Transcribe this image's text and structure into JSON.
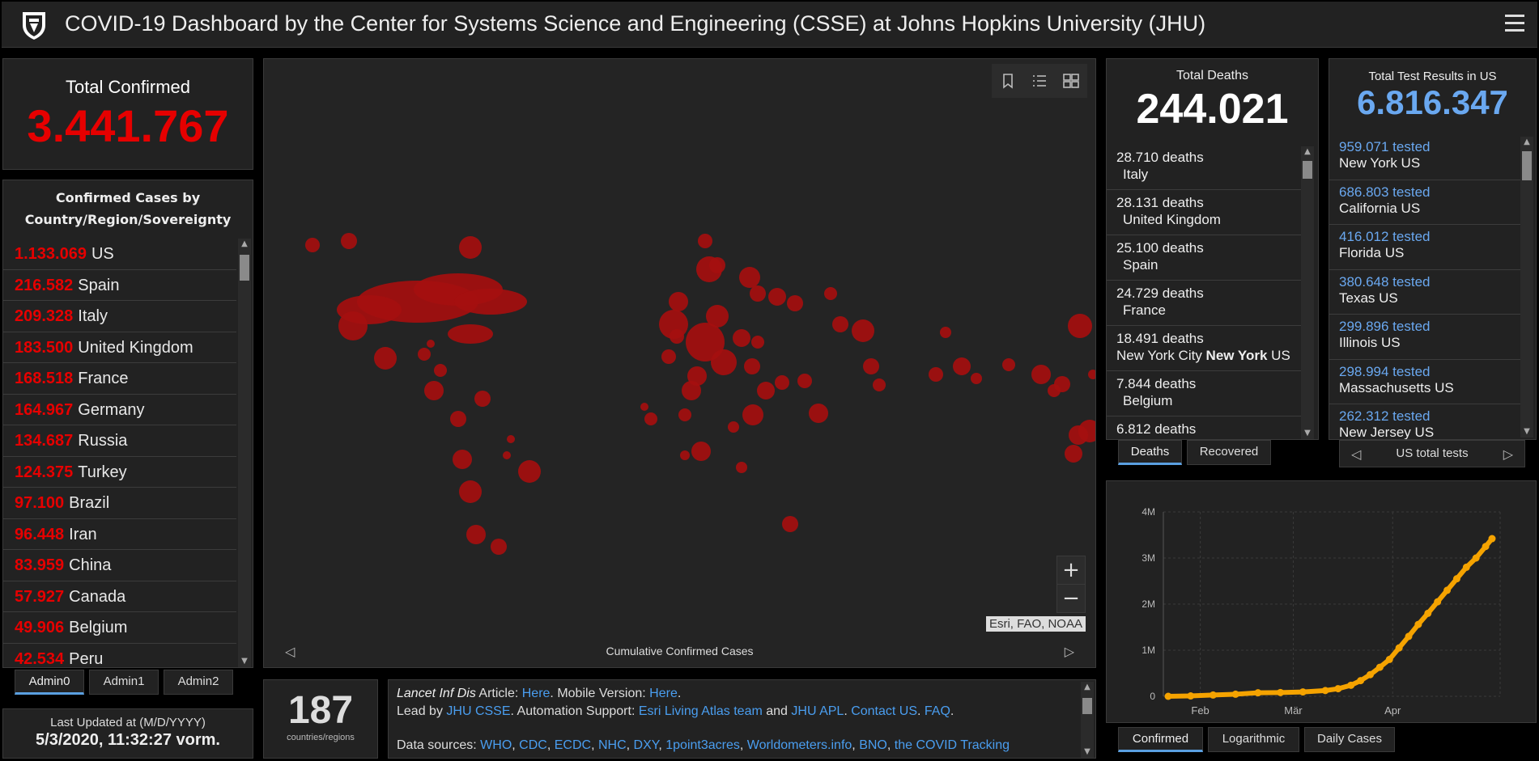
{
  "header": {
    "title": "COVID-19 Dashboard by the Center for Systems Science and Engineering (CSSE) at Johns Hopkins University (JHU)"
  },
  "total_confirmed": {
    "label": "Total Confirmed",
    "value": "3.441.767"
  },
  "country_list": {
    "title_line1": "Confirmed Cases by",
    "title_line2": "Country/Region/Sovereignty",
    "rows": [
      {
        "value": "1.133.069",
        "name": "US"
      },
      {
        "value": "216.582",
        "name": "Spain"
      },
      {
        "value": "209.328",
        "name": "Italy"
      },
      {
        "value": "183.500",
        "name": "United Kingdom"
      },
      {
        "value": "168.518",
        "name": "France"
      },
      {
        "value": "164.967",
        "name": "Germany"
      },
      {
        "value": "134.687",
        "name": "Russia"
      },
      {
        "value": "124.375",
        "name": "Turkey"
      },
      {
        "value": "97.100",
        "name": "Brazil"
      },
      {
        "value": "96.448",
        "name": "Iran"
      },
      {
        "value": "83.959",
        "name": "China"
      },
      {
        "value": "57.927",
        "name": "Canada"
      },
      {
        "value": "49.906",
        "name": "Belgium"
      },
      {
        "value": "42.534",
        "name": "Peru"
      }
    ]
  },
  "admin_tabs": [
    "Admin0",
    "Admin1",
    "Admin2"
  ],
  "last_updated": {
    "label": "Last Updated at (M/D/YYYY)",
    "value": "5/3/2020, 11:32:27 vorm."
  },
  "count": {
    "value": "187",
    "label": "countries/regions"
  },
  "map": {
    "attribution": "Esri, FAO, NOAA",
    "footer": "Cumulative Confirmed Cases",
    "zoom_in": "+",
    "zoom_out": "−",
    "accent": "#a50f0f"
  },
  "info": {
    "l1_italic": "Lancet Inf Dis",
    "l1_t1": " Article: ",
    "l1_link1": "Here",
    "l1_t2": ". Mobile Version: ",
    "l1_link2": "Here",
    "l1_t3": ".",
    "l2_t1": "Lead by ",
    "l2_link1": "JHU CSSE",
    "l2_t2": ". Automation Support: ",
    "l2_link2": "Esri Living Atlas team",
    "l2_t3": " and ",
    "l2_link3": "JHU APL",
    "l2_t4": ". ",
    "l2_link4": "Contact US",
    "l2_t5": ". ",
    "l2_link5": "FAQ",
    "l2_t6": ".",
    "l3_t1": "Data sources: ",
    "sources": [
      "WHO",
      "CDC",
      "ECDC",
      "NHC",
      "DXY",
      "1point3acres",
      "Worldometers.info",
      "BNO",
      "the COVID Tracking"
    ]
  },
  "deaths": {
    "label": "Total Deaths",
    "value": "244.021",
    "rows": [
      {
        "value": "28.710 deaths",
        "loc": "Italy",
        "bold": "",
        "suffix": ""
      },
      {
        "value": "28.131 deaths",
        "loc": "United Kingdom",
        "bold": "",
        "suffix": ""
      },
      {
        "value": "25.100 deaths",
        "loc": "Spain",
        "bold": "",
        "suffix": ""
      },
      {
        "value": "24.729 deaths",
        "loc": "France",
        "bold": "",
        "suffix": ""
      },
      {
        "value": "18.491 deaths",
        "loc": "New York City ",
        "bold": "New York",
        "suffix": " US"
      },
      {
        "value": "7.844 deaths",
        "loc": "Belgium",
        "bold": "",
        "suffix": ""
      },
      {
        "value": "6.812 deaths",
        "loc": "",
        "bold": "",
        "suffix": ""
      }
    ],
    "tabs": [
      "Deaths",
      "Recovered"
    ]
  },
  "tests": {
    "label": "Total Test Results in US",
    "value": "6.816.347",
    "rows": [
      {
        "value": "959.071 tested",
        "loc": "New York",
        "suffix": " US"
      },
      {
        "value": "686.803 tested",
        "loc": "California",
        "suffix": " US"
      },
      {
        "value": "416.012 tested",
        "loc": "Florida",
        "suffix": " US"
      },
      {
        "value": "380.648 tested",
        "loc": "Texas",
        "suffix": " US"
      },
      {
        "value": "299.896 tested",
        "loc": "Illinois",
        "suffix": " US"
      },
      {
        "value": "298.994 tested",
        "loc": "Massachusetts",
        "suffix": " US"
      },
      {
        "value": "262.312 tested",
        "loc": "New Jersey",
        "suffix": " US"
      }
    ],
    "nav_label": "US total tests"
  },
  "chart_tabs": [
    "Confirmed",
    "Logarithmic",
    "Daily Cases"
  ],
  "chart_data": {
    "type": "scatter",
    "title": "",
    "xlabel": "",
    "ylabel": "",
    "x_ticks": [
      "Feb",
      "Mär",
      "Apr"
    ],
    "y_ticks": [
      "0",
      "1M",
      "2M",
      "3M",
      "4M"
    ],
    "ylim": [
      0,
      4000000
    ],
    "color": "#f5a300",
    "grid": true,
    "series": [
      {
        "x": [
          "2020-01-22",
          "2020-01-29",
          "2020-02-05",
          "2020-02-12",
          "2020-02-19",
          "2020-02-26",
          "2020-03-04",
          "2020-03-11",
          "2020-03-15",
          "2020-03-19",
          "2020-03-22",
          "2020-03-25",
          "2020-03-28",
          "2020-03-31",
          "2020-04-03",
          "2020-04-06",
          "2020-04-09",
          "2020-04-12",
          "2020-04-15",
          "2020-04-18",
          "2020-04-21",
          "2020-04-24",
          "2020-04-27",
          "2020-04-30",
          "2020-05-02"
        ],
        "y": [
          0,
          8000,
          28000,
          45000,
          76000,
          82000,
          95000,
          125000,
          165000,
          240000,
          340000,
          470000,
          630000,
          800000,
          1050000,
          1300000,
          1560000,
          1800000,
          2050000,
          2300000,
          2550000,
          2800000,
          3000000,
          3250000,
          3420000
        ]
      }
    ]
  }
}
